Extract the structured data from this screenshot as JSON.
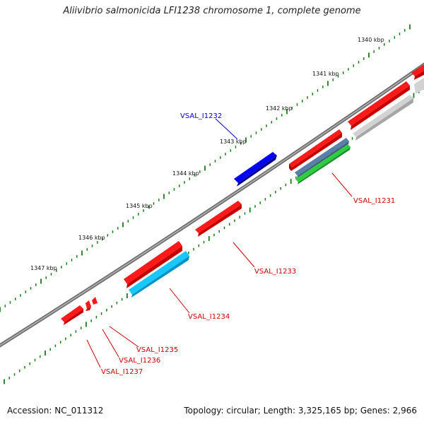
{
  "title": "Aliivibrio salmonicida LFI1238 chromosome 1, complete genome",
  "footer": {
    "accession": "Accession: NC_011312",
    "summary": "Topology: circular; Length: 3,325,165 bp; Genes: 2,966"
  },
  "colors": {
    "backbone": "#808080",
    "tick": "#1a7a1a",
    "forward_gene": "#ff0000",
    "reverse_gene": "#0000ff",
    "cyan_feature": "#00bfff",
    "green_feature": "#2ecc40",
    "steel_feature": "#5b7fa8",
    "gray_feature": "#c0c0c0",
    "label_red": "#cc0000",
    "label_blue": "#0000cc"
  },
  "ruler": {
    "outer_labels": [
      "1340 kbp",
      "1341 kbp",
      "1342 kbp",
      "1343 kbp",
      "1344 kbp",
      "1345 kbp",
      "1346 kbp",
      "1347 kbp"
    ]
  },
  "gene_labels": [
    {
      "id": "VSAL_I1232",
      "color": "blue"
    },
    {
      "id": "VSAL_I1231",
      "color": "red"
    },
    {
      "id": "VSAL_I1233",
      "color": "red"
    },
    {
      "id": "VSAL_I1234",
      "color": "red"
    },
    {
      "id": "VSAL_I1235",
      "color": "red"
    },
    {
      "id": "VSAL_I1236",
      "color": "red"
    },
    {
      "id": "VSAL_I1237",
      "color": "red"
    }
  ]
}
